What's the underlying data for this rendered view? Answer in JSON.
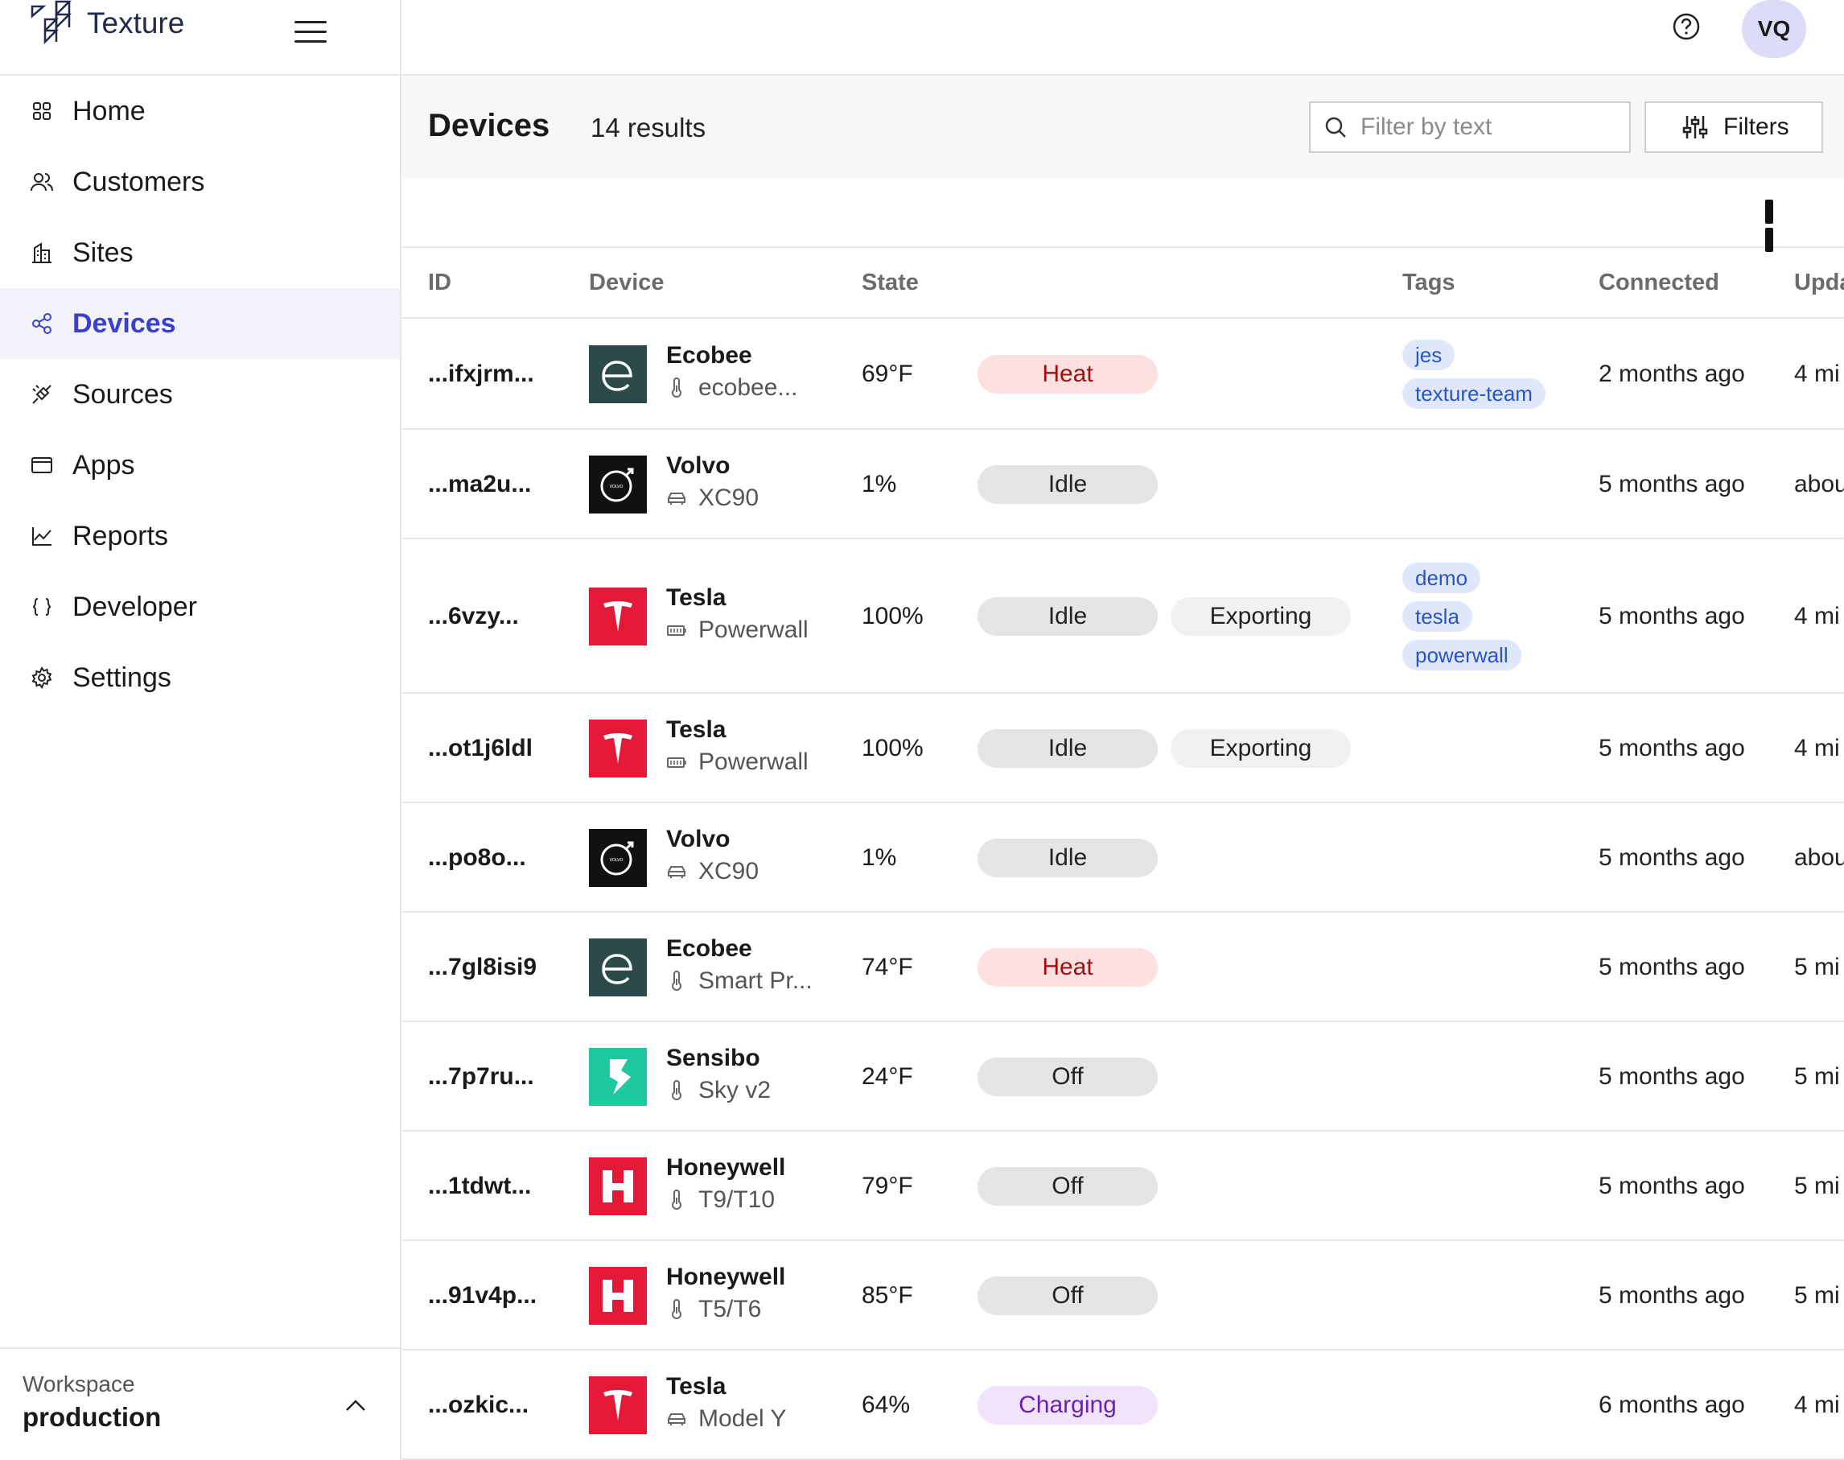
{
  "app": {
    "name": "Texture"
  },
  "sidebar": {
    "items": [
      {
        "label": "Home",
        "icon": "home-grid-icon"
      },
      {
        "label": "Customers",
        "icon": "users-icon"
      },
      {
        "label": "Sites",
        "icon": "building-icon"
      },
      {
        "label": "Devices",
        "icon": "share-nodes-icon",
        "active": true
      },
      {
        "label": "Sources",
        "icon": "plug-icon"
      },
      {
        "label": "Apps",
        "icon": "window-icon"
      },
      {
        "label": "Reports",
        "icon": "line-chart-icon"
      },
      {
        "label": "Developer",
        "icon": "braces-icon"
      },
      {
        "label": "Settings",
        "icon": "gear-icon"
      }
    ],
    "workspace": {
      "label": "Workspace",
      "value": "production"
    }
  },
  "topbar": {
    "avatar": "VQ",
    "help_icon": "question-circle-icon"
  },
  "page": {
    "title": "Devices",
    "results": "14 results",
    "search_placeholder": "Filter by text",
    "filters_label": "Filters"
  },
  "table": {
    "headers": {
      "id": "ID",
      "device": "Device",
      "state": "State",
      "tags": "Tags",
      "connected": "Connected",
      "updated": "Upda"
    },
    "rows": [
      {
        "id": "...ifxjrm...",
        "brand": "Ecobee",
        "model": "ecobee...",
        "model_icon": "thermometer-icon",
        "logo": "ecobee",
        "value": "69°F",
        "state": "Heat",
        "state_kind": "heat",
        "tags": [
          "jes",
          "texture-team"
        ],
        "connected": "2 months ago",
        "updated": "4 mi"
      },
      {
        "id": "...ma2u...",
        "brand": "Volvo",
        "model": "XC90",
        "model_icon": "car-icon",
        "logo": "volvo",
        "value": "1%",
        "state": "Idle",
        "state_kind": "idle",
        "tags": [],
        "connected": "5 months ago",
        "updated": "abou"
      },
      {
        "id": "...6vzy...",
        "brand": "Tesla",
        "model": "Powerwall",
        "model_icon": "battery-icon",
        "logo": "tesla",
        "value": "100%",
        "state": "Idle",
        "state_kind": "idle",
        "state2": "Exporting",
        "tags": [
          "demo",
          "tesla",
          "powerwall"
        ],
        "connected": "5 months ago",
        "updated": "4 mi"
      },
      {
        "id": "...ot1j6ldl",
        "brand": "Tesla",
        "model": "Powerwall",
        "model_icon": "battery-icon",
        "logo": "tesla",
        "value": "100%",
        "state": "Idle",
        "state_kind": "idle",
        "state2": "Exporting",
        "tags": [],
        "connected": "5 months ago",
        "updated": "4 mi"
      },
      {
        "id": "...po8o...",
        "brand": "Volvo",
        "model": "XC90",
        "model_icon": "car-icon",
        "logo": "volvo",
        "value": "1%",
        "state": "Idle",
        "state_kind": "idle",
        "tags": [],
        "connected": "5 months ago",
        "updated": "abou"
      },
      {
        "id": "...7gl8isi9",
        "brand": "Ecobee",
        "model": "Smart Pr...",
        "model_icon": "thermometer-icon",
        "logo": "ecobee",
        "value": "74°F",
        "state": "Heat",
        "state_kind": "heat",
        "tags": [],
        "connected": "5 months ago",
        "updated": "5 mi"
      },
      {
        "id": "...7p7ru...",
        "brand": "Sensibo",
        "model": "Sky v2",
        "model_icon": "thermometer-icon",
        "logo": "sensibo",
        "value": "24°F",
        "state": "Off",
        "state_kind": "off",
        "tags": [],
        "connected": "5 months ago",
        "updated": "5 mi"
      },
      {
        "id": "...1tdwt...",
        "brand": "Honeywell",
        "model": "T9/T10",
        "model_icon": "thermometer-icon",
        "logo": "honeywell",
        "value": "79°F",
        "state": "Off",
        "state_kind": "off",
        "tags": [],
        "connected": "5 months ago",
        "updated": "5 mi"
      },
      {
        "id": "...91v4p...",
        "brand": "Honeywell",
        "model": "T5/T6",
        "model_icon": "thermometer-icon",
        "logo": "honeywell",
        "value": "85°F",
        "state": "Off",
        "state_kind": "off",
        "tags": [],
        "connected": "5 months ago",
        "updated": "5 mi"
      },
      {
        "id": "...ozkic...",
        "brand": "Tesla",
        "model": "Model Y",
        "model_icon": "car-icon",
        "logo": "tesla",
        "value": "64%",
        "state": "Charging",
        "state_kind": "charging",
        "tags": [],
        "connected": "6 months ago",
        "updated": "4 mi"
      }
    ]
  },
  "colors": {
    "accent": "#3b3fc9",
    "active_bg": "#f1f2fa",
    "heat_bg": "#fde1e1",
    "heat_text": "#9b1010",
    "tag_bg": "#dfe8fb",
    "tag_text": "#2a55c8",
    "charging_bg": "#f0e3fb",
    "charging_text": "#6a22b3"
  }
}
